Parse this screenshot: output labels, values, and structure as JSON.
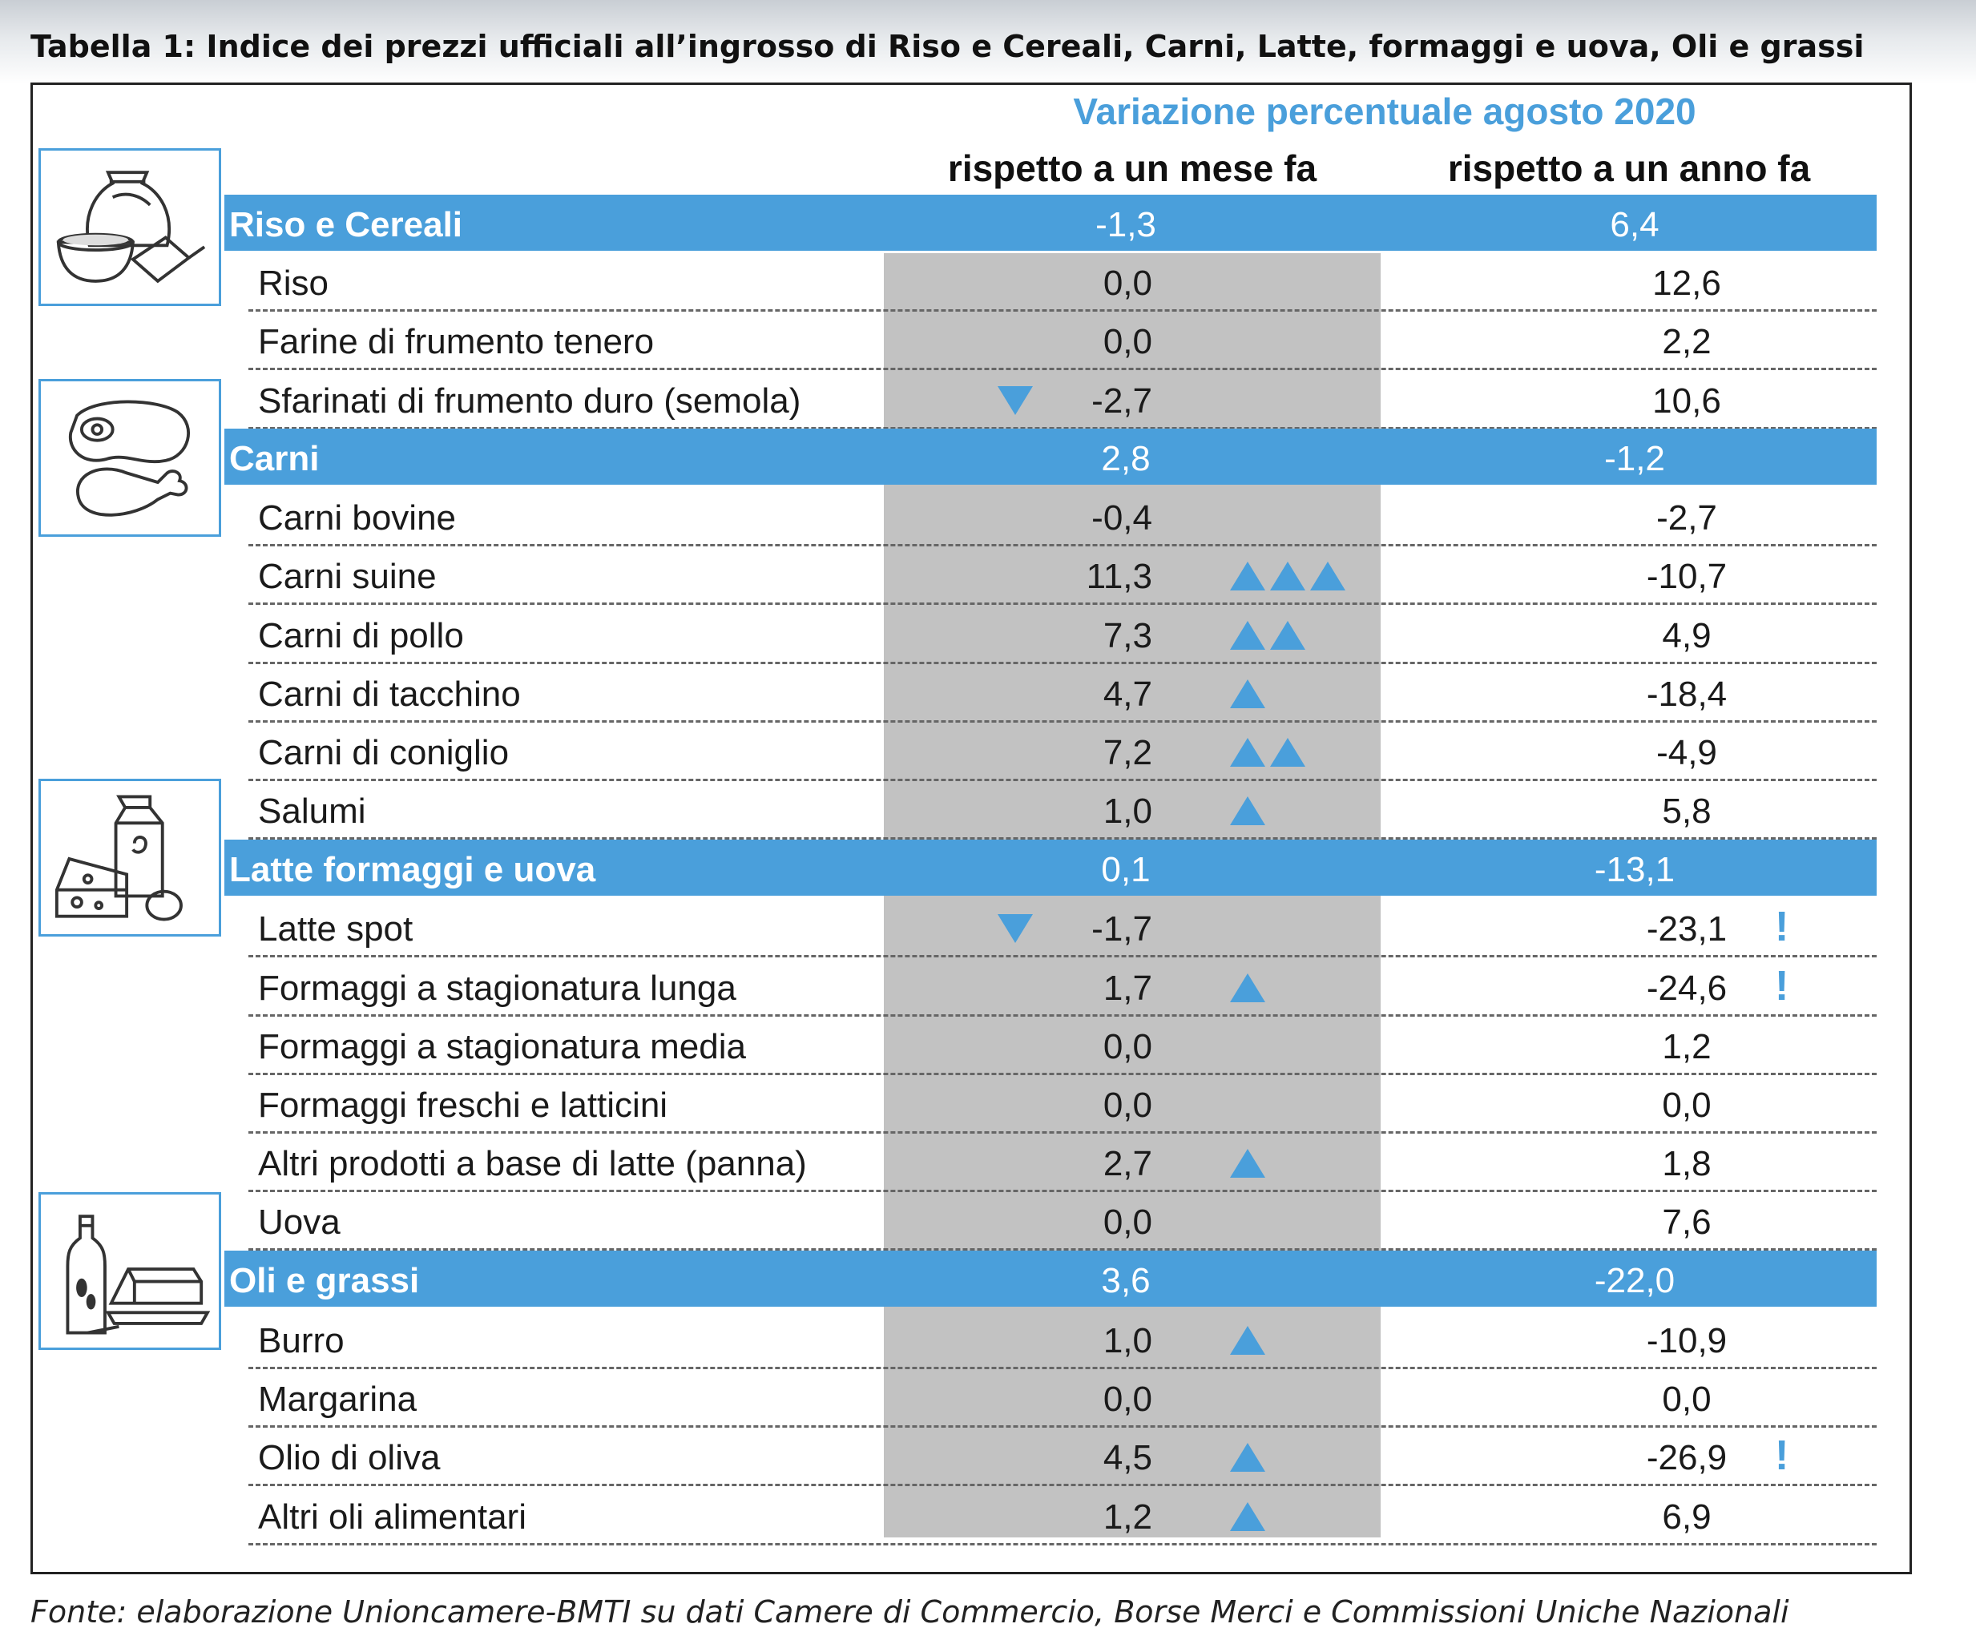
{
  "title": "Tabella 1: Indice dei prezzi ufficiali all’ingrosso di Riso e Cereali, Carni, Latte, formaggi e uova, Oli e grassi",
  "header": {
    "main": "Variazione percentuale agosto 2020",
    "col_month": "rispetto a un mese fa",
    "col_year": "rispetto a un anno fa"
  },
  "icons": [
    "grain-sack-icon",
    "meat-icon",
    "dairy-icon",
    "oil-butter-icon"
  ],
  "colors": {
    "accent": "#4a9fdb",
    "shade": "#c2c2c2"
  },
  "rows": [
    {
      "type": "category",
      "name": "Riso e Cereali",
      "month": "-1,3",
      "year": "6,4",
      "arrows": 0,
      "alert": false
    },
    {
      "type": "item",
      "name": "Riso",
      "month": "0,0",
      "year": "12,6",
      "arrows": 0,
      "alert": false
    },
    {
      "type": "item",
      "name": "Farine di frumento tenero",
      "month": "0,0",
      "year": "2,2",
      "arrows": 0,
      "alert": false
    },
    {
      "type": "item",
      "name": "Sfarinati di frumento duro (semola)",
      "month": "-2,7",
      "year": "10,6",
      "arrows": -1,
      "alert": false
    },
    {
      "type": "category",
      "name": "Carni",
      "month": "2,8",
      "year": "-1,2",
      "arrows": 0,
      "alert": false
    },
    {
      "type": "item",
      "name": "Carni bovine",
      "month": "-0,4",
      "year": "-2,7",
      "arrows": 0,
      "alert": false
    },
    {
      "type": "item",
      "name": "Carni suine",
      "month": "11,3",
      "year": "-10,7",
      "arrows": 3,
      "alert": false
    },
    {
      "type": "item",
      "name": "Carni di pollo",
      "month": "7,3",
      "year": "4,9",
      "arrows": 2,
      "alert": false
    },
    {
      "type": "item",
      "name": "Carni di tacchino",
      "month": "4,7",
      "year": "-18,4",
      "arrows": 1,
      "alert": false
    },
    {
      "type": "item",
      "name": "Carni di coniglio",
      "month": "7,2",
      "year": "-4,9",
      "arrows": 2,
      "alert": false
    },
    {
      "type": "item",
      "name": "Salumi",
      "month": "1,0",
      "year": "5,8",
      "arrows": 1,
      "alert": false
    },
    {
      "type": "category",
      "name": "Latte formaggi e uova",
      "month": "0,1",
      "year": "-13,1",
      "arrows": 0,
      "alert": false
    },
    {
      "type": "item",
      "name": "Latte spot",
      "month": "-1,7",
      "year": "-23,1",
      "arrows": -1,
      "alert": true
    },
    {
      "type": "item",
      "name": "Formaggi a stagionatura lunga",
      "month": "1,7",
      "year": "-24,6",
      "arrows": 1,
      "alert": true
    },
    {
      "type": "item",
      "name": "Formaggi a stagionatura media",
      "month": "0,0",
      "year": "1,2",
      "arrows": 0,
      "alert": false
    },
    {
      "type": "item",
      "name": "Formaggi freschi e latticini",
      "month": "0,0",
      "year": "0,0",
      "arrows": 0,
      "alert": false
    },
    {
      "type": "item",
      "name": "Altri prodotti a base di latte (panna)",
      "month": "2,7",
      "year": "1,8",
      "arrows": 1,
      "alert": false
    },
    {
      "type": "item",
      "name": "Uova",
      "month": "0,0",
      "year": "7,6",
      "arrows": 0,
      "alert": false
    },
    {
      "type": "category",
      "name": "Oli e grassi",
      "month": "3,6",
      "year": "-22,0",
      "arrows": 0,
      "alert": false
    },
    {
      "type": "item",
      "name": "Burro",
      "month": "1,0",
      "year": "-10,9",
      "arrows": 1,
      "alert": false
    },
    {
      "type": "item",
      "name": "Margarina",
      "month": "0,0",
      "year": "0,0",
      "arrows": 0,
      "alert": false
    },
    {
      "type": "item",
      "name": "Olio di oliva",
      "month": "4,5",
      "year": "-26,9",
      "arrows": 1,
      "alert": true
    },
    {
      "type": "item",
      "name": "Altri oli alimentari",
      "month": "1,2",
      "year": "6,9",
      "arrows": 1,
      "alert": false
    }
  ],
  "alert_symbol": "!",
  "footnote": "Fonte: elaborazione Unioncamere-BMTI su dati Camere di Commercio, Borse Merci e Commissioni Uniche Nazionali"
}
